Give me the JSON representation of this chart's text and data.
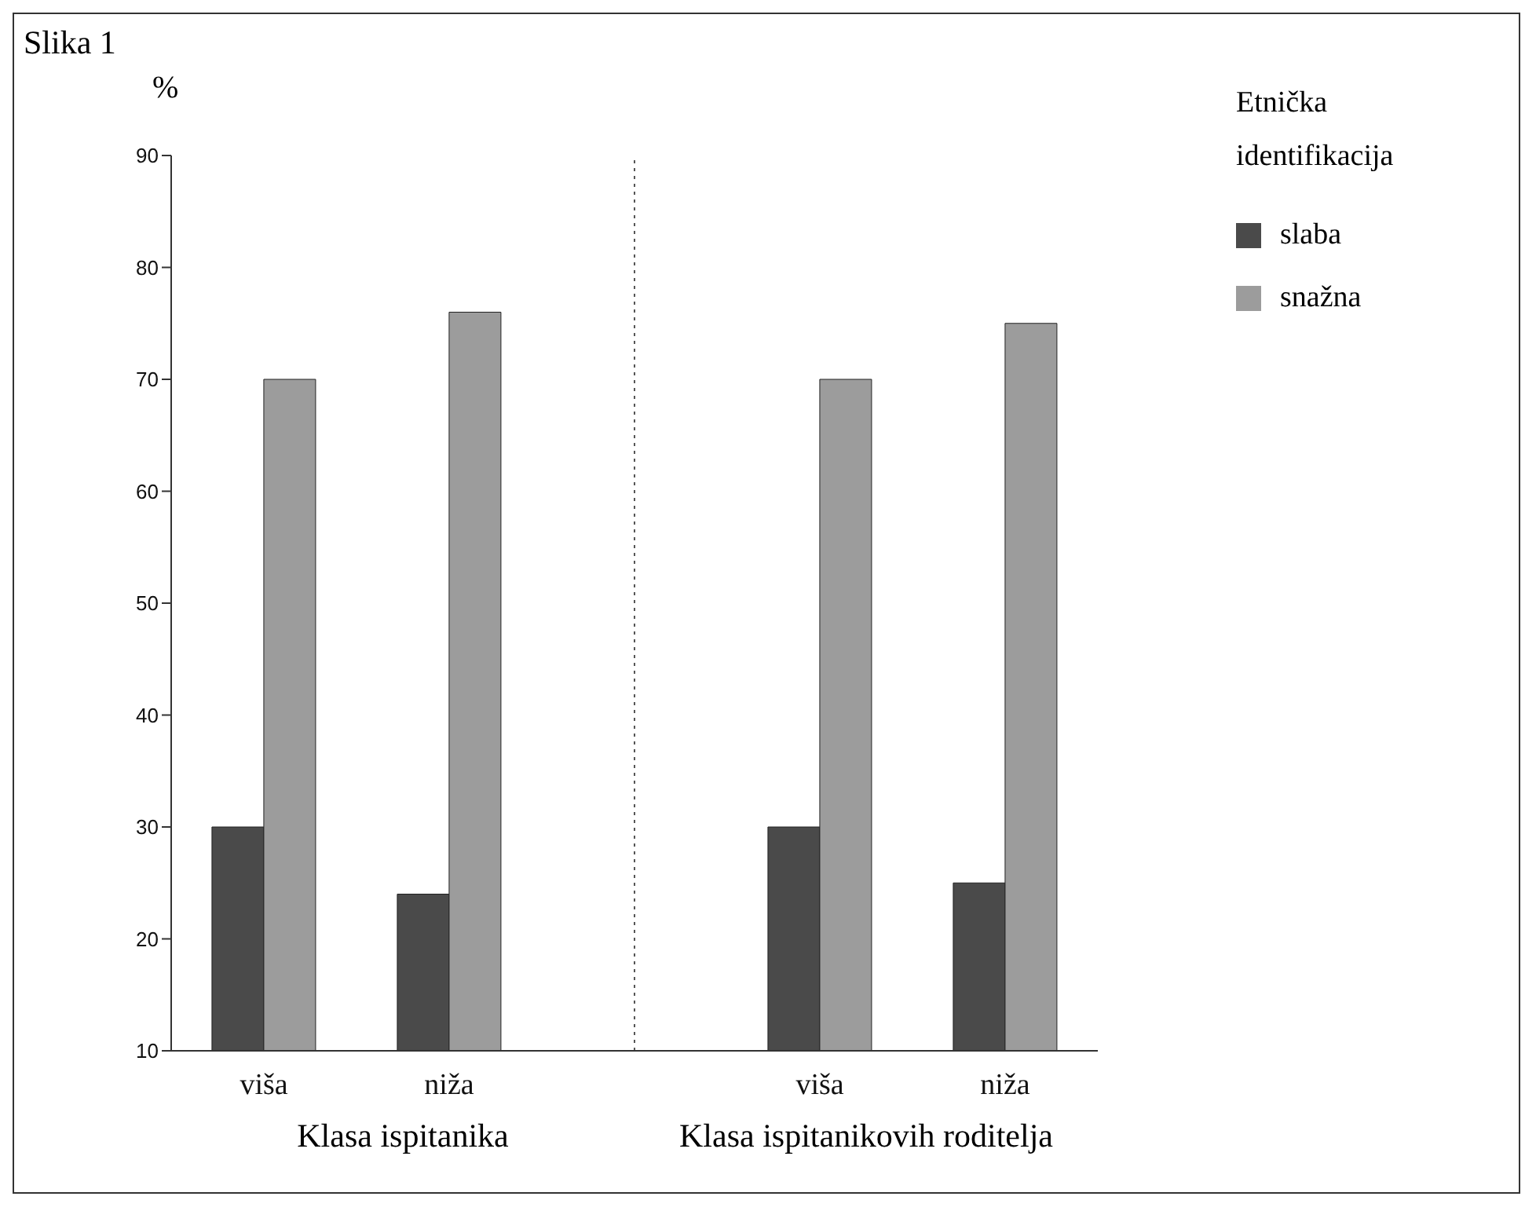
{
  "chart_data": {
    "type": "bar",
    "title": "Slika 1",
    "ylabel": "%",
    "legend_title": "Etnička identifikacija",
    "categories": [
      "viša",
      "niža",
      null,
      "viša",
      "niža"
    ],
    "series": [
      {
        "name": "slaba",
        "color": "#4a4a4a",
        "values": [
          30,
          24,
          null,
          30,
          25
        ]
      },
      {
        "name": "snažna",
        "color": "#9c9c9c",
        "values": [
          70,
          76,
          null,
          70,
          75
        ]
      }
    ],
    "ylim": [
      10,
      90
    ],
    "yticks": [
      10,
      20,
      30,
      40,
      50,
      60,
      70,
      80,
      90
    ],
    "ref_lines": [
      {
        "axis": "x",
        "line_style": "dotted",
        "color": "#555555"
      }
    ],
    "annotations": [
      "Klasa ispitanika",
      "Klasa ispitanikovih roditelja"
    ],
    "legend": "top right"
  }
}
